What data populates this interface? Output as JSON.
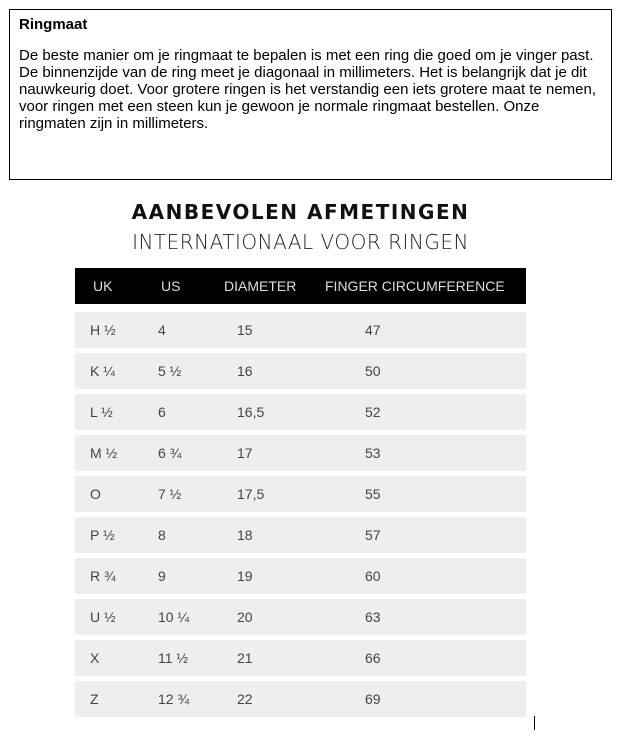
{
  "info": {
    "title": "Ringmaat",
    "text": "De beste manier om je ringmaat te bepalen is met een ring die goed om je vinger past. De binnenzijde van de ring meet je diagonaal in millimeters. Het is belangrijk dat je dit nauwkeurig doet. Voor grotere ringen is het verstandig een iets grotere maat te nemen, voor ringen met een steen kun je gewoon je normale ringmaat bestellen. Onze ringmaten zijn in millimeters."
  },
  "chart": {
    "title": "AANBEVOLEN AFMETINGEN",
    "subtitle": "INTERNATIONAAL VOOR RINGEN",
    "headers": [
      "UK",
      "US",
      "DIAMETER",
      "FINGER CIRCUMFERENCE"
    ],
    "rows": [
      [
        "H ½",
        "4",
        "15",
        "47"
      ],
      [
        "K ¼",
        "5 ½",
        "16",
        "50"
      ],
      [
        "L ½",
        "6",
        "16,5",
        "52"
      ],
      [
        "M ½",
        "6 ¾",
        "17",
        "53"
      ],
      [
        "O",
        "7 ½",
        "17,5",
        "55"
      ],
      [
        "P ½",
        "8",
        "18",
        "57"
      ],
      [
        "R ¾",
        "9",
        "19",
        "60"
      ],
      [
        "U ½",
        "10 ¼",
        "20",
        "63"
      ],
      [
        "X",
        "11 ½",
        "21",
        "66"
      ],
      [
        "Z",
        "12 ¾",
        "22",
        "69"
      ]
    ]
  }
}
